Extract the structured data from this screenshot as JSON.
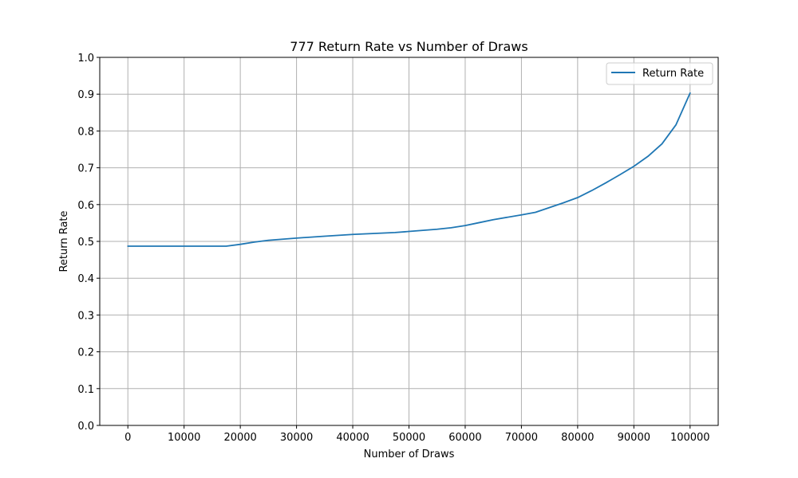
{
  "chart_data": {
    "type": "line",
    "title": "777 Return Rate vs Number of Draws",
    "xlabel": "Number of Draws",
    "ylabel": "Return Rate",
    "xlim": [
      -5000,
      105000
    ],
    "ylim": [
      0.0,
      1.0
    ],
    "xticks": [
      0,
      10000,
      20000,
      30000,
      40000,
      50000,
      60000,
      70000,
      80000,
      90000,
      100000
    ],
    "yticks": [
      0.0,
      0.1,
      0.2,
      0.3,
      0.4,
      0.5,
      0.6,
      0.7,
      0.8,
      0.9,
      1.0
    ],
    "xtick_labels": [
      "0",
      "10000",
      "20000",
      "30000",
      "40000",
      "50000",
      "60000",
      "70000",
      "80000",
      "90000",
      "100000"
    ],
    "ytick_labels": [
      "0.0",
      "0.1",
      "0.2",
      "0.3",
      "0.4",
      "0.5",
      "0.6",
      "0.7",
      "0.8",
      "0.9",
      "1.0"
    ],
    "grid": true,
    "legend_position": "top-right",
    "series": [
      {
        "name": "Return Rate",
        "color": "#1f77b4",
        "x": [
          0,
          5000,
          10000,
          15000,
          17500,
          20000,
          22500,
          25000,
          30000,
          35000,
          40000,
          47500,
          50000,
          55000,
          57500,
          60000,
          62500,
          65000,
          70000,
          72500,
          75000,
          77500,
          80000,
          82500,
          85000,
          87500,
          90000,
          92500,
          95000,
          97500,
          100000
        ],
        "y": [
          0.487,
          0.487,
          0.487,
          0.487,
          0.487,
          0.492,
          0.498,
          0.503,
          0.509,
          0.514,
          0.519,
          0.524,
          0.527,
          0.533,
          0.537,
          0.543,
          0.551,
          0.559,
          0.572,
          0.579,
          0.592,
          0.605,
          0.619,
          0.638,
          0.659,
          0.681,
          0.704,
          0.731,
          0.765,
          0.817,
          0.903
        ]
      }
    ]
  }
}
